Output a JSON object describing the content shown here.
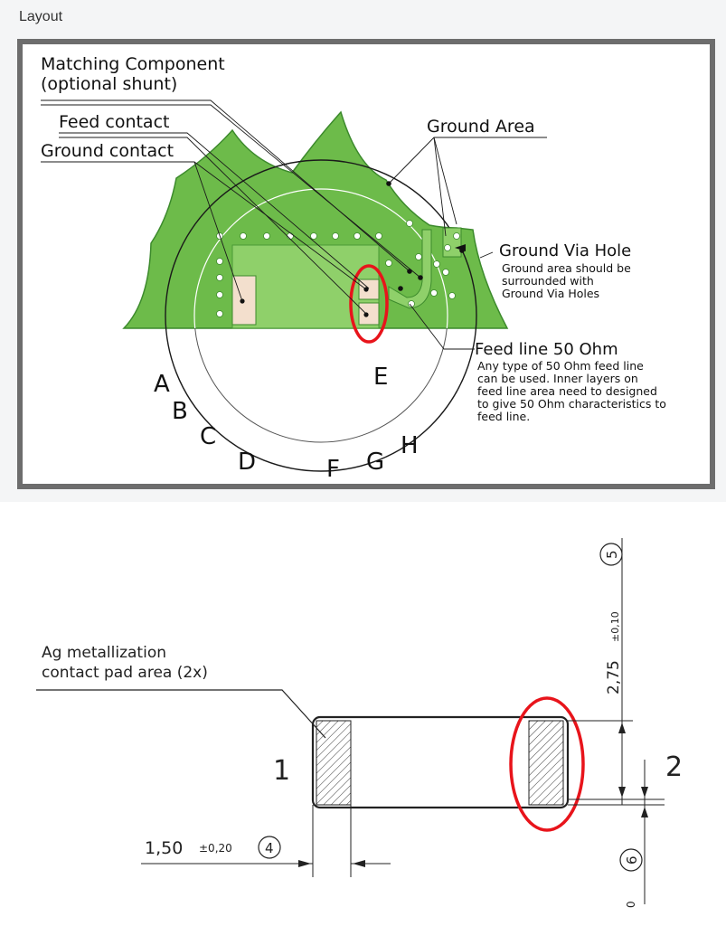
{
  "section_label": "Layout",
  "layout_diagram": {
    "labels": {
      "matching_component_line1": "Matching Component",
      "matching_component_line2": "(optional shunt)",
      "feed_contact": "Feed contact",
      "ground_contact": "Ground contact",
      "ground_area": "Ground Area",
      "ground_via_hole": "Ground Via Hole",
      "ground_via_hole_note": [
        "Ground area should be",
        "surrounded with",
        "Ground Via Holes"
      ],
      "feed_line": "Feed line 50 Ohm",
      "feed_line_note": [
        "Any type of 50 Ohm feed line",
        "can be used. Inner layers on",
        "feed line area need to designed",
        "to give 50 Ohm characteristics to",
        "feed line."
      ]
    },
    "position_letters": [
      "A",
      "B",
      "C",
      "D",
      "E",
      "F",
      "G",
      "H"
    ],
    "colors": {
      "ground_area": "#6dbb4a",
      "ground_edge": "#3c8a2c",
      "pad": "#f3dfcd",
      "highlight": "#e8141b",
      "frame": "#6d6d6d"
    }
  },
  "component_drawing": {
    "metallization_label": [
      "Ag metallization",
      "contact pad area (2x)"
    ],
    "terminal_1": "1",
    "terminal_2": "2",
    "dim_height": "2,75",
    "dim_height_tol": "±0,10",
    "dim_height_ref": "5",
    "dim_pad_width": "1,50",
    "dim_pad_width_tol": "±0,20",
    "dim_pad_width_ref": "4",
    "dim_gap_ref": "6",
    "cut_digit": "0",
    "colors": {
      "highlight": "#e8141b",
      "line": "#222222"
    }
  }
}
